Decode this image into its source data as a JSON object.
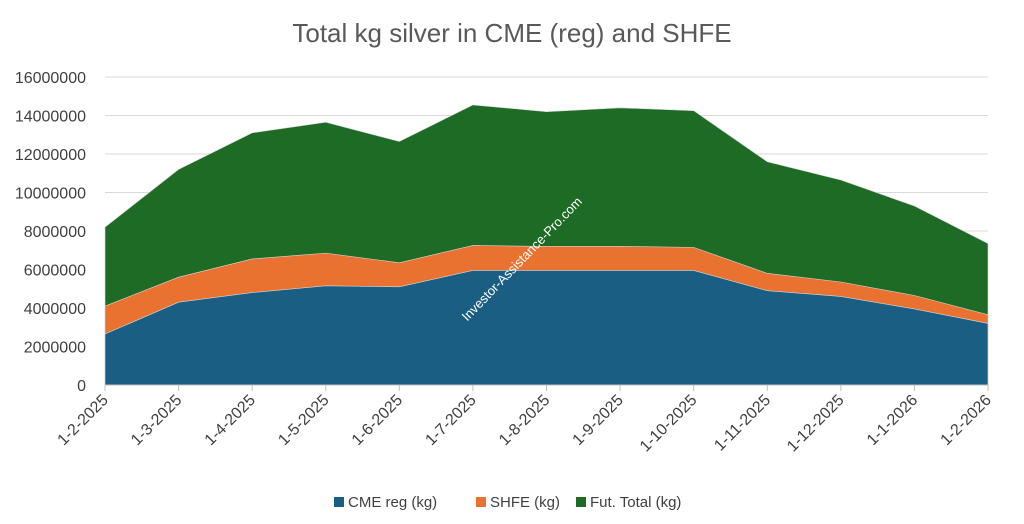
{
  "chart_data": {
    "type": "area",
    "stacked": true,
    "title": "Total kg silver in CME (reg) and SHFE",
    "xlabel": "",
    "ylabel": "",
    "categories": [
      "1-2-2025",
      "1-3-2025",
      "1-4-2025",
      "1-5-2025",
      "1-6-2025",
      "1-7-2025",
      "1-8-2025",
      "1-9-2025",
      "1-10-2025",
      "1-11-2025",
      "1-12-2025",
      "1-1-2026",
      "1-2-2026"
    ],
    "ylim": [
      0,
      16000000
    ],
    "yticks": [
      "0",
      "2000000",
      "4000000",
      "6000000",
      "8000000",
      "10000000",
      "12000000",
      "14000000",
      "16000000"
    ],
    "grid": true,
    "legend_position": "bottom",
    "series": [
      {
        "name": "CME reg (kg)",
        "color": "#1a5e84",
        "values": [
          2650000,
          4300000,
          4800000,
          5150000,
          5100000,
          5950000,
          5950000,
          5950000,
          5950000,
          4900000,
          4600000,
          3950000,
          3200000
        ]
      },
      {
        "name": "SHFE (kg)",
        "color": "#ea7231",
        "values": [
          1450000,
          1300000,
          1750000,
          1700000,
          1250000,
          1300000,
          1250000,
          1250000,
          1200000,
          900000,
          750000,
          700000,
          450000
        ]
      },
      {
        "name": "Fut. Total (kg)",
        "color": "#1e6b26",
        "values": [
          4100000,
          5600000,
          6550000,
          6800000,
          6300000,
          7300000,
          7000000,
          7200000,
          7100000,
          5800000,
          5300000,
          4650000,
          3700000
        ]
      }
    ],
    "watermark": "Investor-Assistance-Pro.com"
  }
}
